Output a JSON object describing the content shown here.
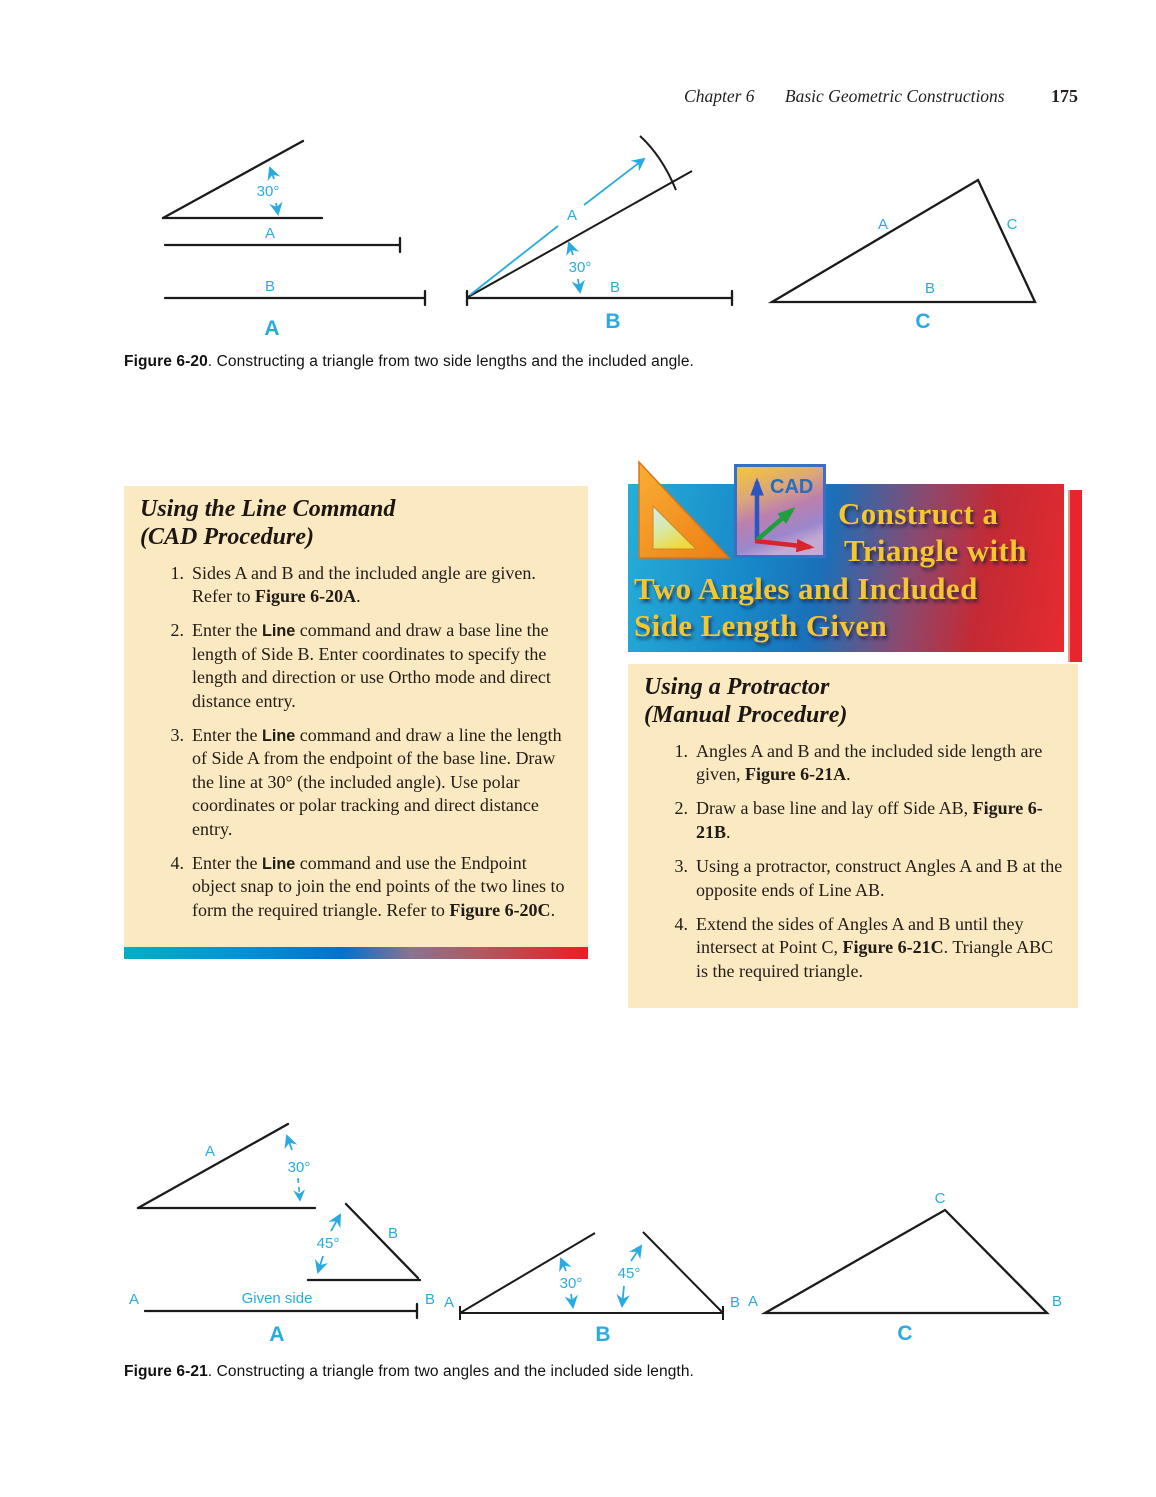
{
  "header": {
    "chapter": "Chapter 6",
    "title": "Basic Geometric Constructions",
    "page_number": "175"
  },
  "colors": {
    "figure_label_accent": "#29ABE2",
    "panel_background": "#FAE9C1",
    "banner_text": "#F6C62F",
    "banner_gradient": [
      "#26AED8",
      "#1B6FB8",
      "#E62B30"
    ],
    "rainbow_bar": [
      "#00B0C4",
      "#0072CE",
      "#ED1C24"
    ]
  },
  "figure_620": {
    "caption_label": "Figure 6-20",
    "caption_text": ". Constructing a triangle from two side lengths and the included angle.",
    "panels": {
      "a": {
        "angle": "30°",
        "line_a": "A",
        "line_b": "B",
        "label": "A"
      },
      "b": {
        "angle": "30°",
        "ray_a": "A",
        "base_b": "B",
        "label": "B"
      },
      "c": {
        "side_a": "A",
        "side_b": "B",
        "side_c": "C",
        "label": "C"
      }
    }
  },
  "left_section": {
    "heading_line1": "Using the Line Command",
    "heading_line2": "(CAD Procedure)",
    "steps": [
      {
        "num": "1.",
        "segments": [
          {
            "t": "Sides A and B and the included angle are given. Refer to ",
            "s": "plain"
          },
          {
            "t": "Figure 6-20A",
            "s": "bold"
          },
          {
            "t": ".",
            "s": "plain"
          }
        ]
      },
      {
        "num": "2.",
        "segments": [
          {
            "t": "Enter the ",
            "s": "plain"
          },
          {
            "t": "Line",
            "s": "cmd"
          },
          {
            "t": " command and draw a base line the length of Side B. Enter coordinates to specify the length and direction or use Ortho mode and direct distance entry.",
            "s": "plain"
          }
        ]
      },
      {
        "num": "3.",
        "segments": [
          {
            "t": "Enter the ",
            "s": "plain"
          },
          {
            "t": "Line",
            "s": "cmd"
          },
          {
            "t": " command and draw a line the length of Side A from the endpoint of the base line. Draw the line at 30° (the included angle). Use polar coordinates or polar tracking and direct distance entry.",
            "s": "plain"
          }
        ]
      },
      {
        "num": "4.",
        "segments": [
          {
            "t": "Enter the ",
            "s": "plain"
          },
          {
            "t": "Line",
            "s": "cmd"
          },
          {
            "t": " command and use the Endpoint object snap to join the end points of the two lines to form the required triangle. Refer to ",
            "s": "plain"
          },
          {
            "t": "Figure 6-20C",
            "s": "bold"
          },
          {
            "t": ".",
            "s": "plain"
          }
        ]
      }
    ]
  },
  "banner": {
    "lines": [
      "Construct a",
      "Triangle with",
      "Two Angles and Included",
      "Side Length Given"
    ],
    "cad_icon_label": "CAD"
  },
  "right_section": {
    "heading_line1": "Using a Protractor",
    "heading_line2": "(Manual Procedure)",
    "steps": [
      {
        "num": "1.",
        "segments": [
          {
            "t": "Angles A and B and the included side length are given, ",
            "s": "plain"
          },
          {
            "t": "Figure 6-21A",
            "s": "bold"
          },
          {
            "t": ".",
            "s": "plain"
          }
        ]
      },
      {
        "num": "2.",
        "segments": [
          {
            "t": "Draw a base line and lay off Side AB, ",
            "s": "plain"
          },
          {
            "t": "Figure 6-21B",
            "s": "bold"
          },
          {
            "t": ".",
            "s": "plain"
          }
        ]
      },
      {
        "num": "3.",
        "segments": [
          {
            "t": "Using a protractor, construct Angles A and B at the opposite ends of Line AB.",
            "s": "plain"
          }
        ]
      },
      {
        "num": "4.",
        "segments": [
          {
            "t": "Extend the sides of Angles A and B until they intersect at Point C, ",
            "s": "plain"
          },
          {
            "t": "Figure 6-21C",
            "s": "bold"
          },
          {
            "t": ". Triangle ABC is the required triangle.",
            "s": "plain"
          }
        ]
      }
    ]
  },
  "figure_621": {
    "caption_label": "Figure 6-21",
    "caption_text": ". Constructing a triangle from two angles and the included side length.",
    "panels": {
      "a": {
        "angle_a_name": "A",
        "angle_a_value": "30°",
        "angle_b_name": "B",
        "angle_b_value": "45°",
        "end_a": "A",
        "end_b": "B",
        "given_side": "Given side",
        "label": "A"
      },
      "b": {
        "angle_30": "30°",
        "angle_45": "45°",
        "end_a": "A",
        "end_b": "B",
        "label": "B"
      },
      "c": {
        "vertex_a": "A",
        "vertex_b": "B",
        "vertex_c": "C",
        "label": "C"
      }
    }
  }
}
